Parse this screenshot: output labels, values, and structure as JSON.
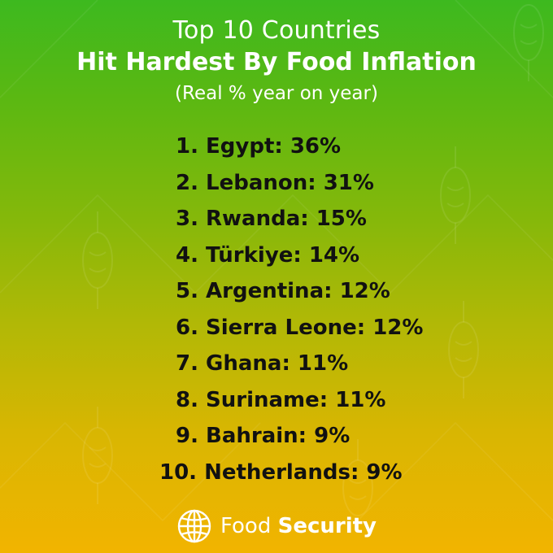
{
  "header": {
    "title_line1": "Top 10 Countries",
    "title_line2": "Hit Hardest By Food Inflation",
    "subtitle": "(Real % year on year)"
  },
  "ranking": [
    {
      "rank": "1.",
      "country": "Egypt",
      "value": "36%",
      "text": "1. Egypt: 36%"
    },
    {
      "rank": "2.",
      "country": "Lebanon",
      "value": "31%",
      "text": "2. Lebanon: 31%"
    },
    {
      "rank": "3.",
      "country": "Rwanda",
      "value": "15%",
      "text": "3. Rwanda: 15%"
    },
    {
      "rank": "4.",
      "country": "Türkiye",
      "value": "14%",
      "text": "4. Türkiye: 14%"
    },
    {
      "rank": "5.",
      "country": "Argentina",
      "value": "12%",
      "text": "5. Argentina: 12%"
    },
    {
      "rank": "6.",
      "country": "Sierra Leone",
      "value": "12%",
      "text": "6. Sierra Leone: 12%"
    },
    {
      "rank": "7.",
      "country": "Ghana",
      "value": "11%",
      "text": "7. Ghana: 11%"
    },
    {
      "rank": "8.",
      "country": "Suriname",
      "value": "11%",
      "text": "8. Suriname: 11%"
    },
    {
      "rank": "9.",
      "country": "Bahrain",
      "value": "9%",
      "text": "9. Bahrain: 9%"
    },
    {
      "rank": "10.",
      "country": "Netherlands",
      "value": "9%",
      "text": "10. Netherlands: 9%"
    }
  ],
  "footer": {
    "logo_icon": "globe-icon",
    "brand_light": "Food",
    "brand_bold": "Security"
  },
  "colors": {
    "gradient_top": "#3db91f",
    "gradient_bottom": "#f2b400",
    "heading_text": "#ffffff",
    "list_text": "#111111"
  }
}
